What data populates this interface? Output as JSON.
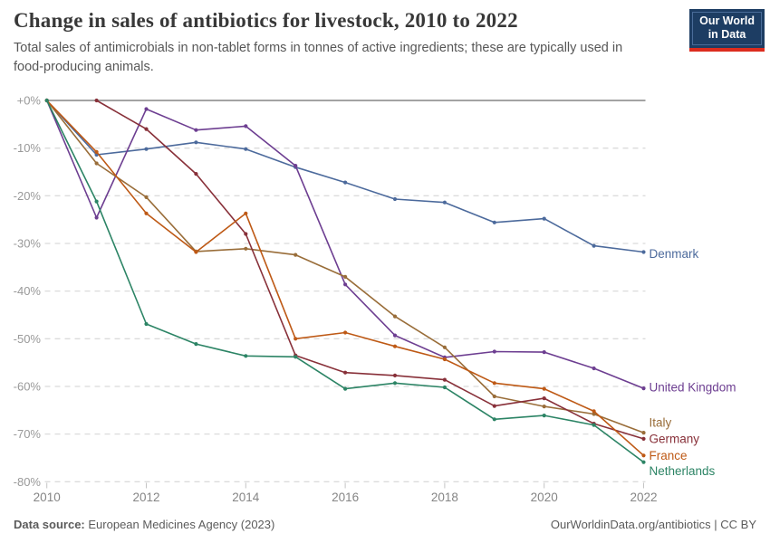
{
  "header": {
    "title": "Change in sales of antibiotics for livestock, 2010 to 2022",
    "subtitle": "Total sales of antimicrobials in non-tablet forms in tonnes of active ingredients; these are typically used in food-producing animals."
  },
  "logo": {
    "line1": "Our World",
    "line2": "in Data",
    "bg_color": "#1d3d63",
    "bar_color": "#dc2c1e"
  },
  "footer": {
    "source_label": "Data source:",
    "source_value": "European Medicines Agency (2023)",
    "right_text": "OurWorldinData.org/antibiotics | CC BY"
  },
  "chart_data": {
    "type": "line",
    "title": "Change in sales of antibiotics for livestock, 2010 to 2022",
    "xlabel": "",
    "ylabel": "",
    "xlim": [
      2010,
      2022
    ],
    "ylim": [
      -80,
      0
    ],
    "grid": "horizontal-dashed",
    "legend_position": "right-end-labels",
    "x_ticks": [
      2010,
      2012,
      2014,
      2016,
      2018,
      2020,
      2022
    ],
    "y_tick_labels": [
      "+0%",
      "-10%",
      "-20%",
      "-30%",
      "-40%",
      "-50%",
      "-60%",
      "-70%",
      "-80%"
    ],
    "y_tick_values": [
      0,
      -10,
      -20,
      -30,
      -40,
      -50,
      -60,
      -70,
      -80
    ],
    "axis_colors": {
      "zero_line": "#a3a3a3",
      "gridline": "#dbdbdb",
      "tick": "#c4c4c4"
    },
    "series": [
      {
        "name": "Denmark",
        "color": "#4C6A9C",
        "label_dy": 2,
        "years": [
          2010,
          2011,
          2012,
          2013,
          2014,
          2015,
          2016,
          2017,
          2018,
          2019,
          2020,
          2021,
          2022
        ],
        "values": [
          0,
          -11.4,
          -10.2,
          -8.8,
          -10.2,
          -14,
          -17.2,
          -20.7,
          -21.4,
          -25.6,
          -24.8,
          -30.5,
          -31.8
        ]
      },
      {
        "name": "United Kingdom",
        "color": "#6D3E91",
        "label_dy": -1,
        "years": [
          2010,
          2011,
          2012,
          2013,
          2014,
          2015,
          2016,
          2017,
          2018,
          2019,
          2020,
          2021,
          2022
        ],
        "values": [
          0,
          -24.6,
          -1.8,
          -6.2,
          -5.4,
          -13.7,
          -38.6,
          -49.3,
          -53.9,
          -52.7,
          -52.8,
          -56.2,
          -60.4
        ]
      },
      {
        "name": "Italy",
        "color": "#996D39",
        "label_dy": -11,
        "years": [
          2010,
          2011,
          2012,
          2013,
          2014,
          2015,
          2016,
          2017,
          2018,
          2019,
          2020,
          2021,
          2022
        ],
        "values": [
          0,
          -13.2,
          -20.3,
          -31.7,
          -31.1,
          -32.4,
          -37,
          -45.3,
          -51.8,
          -62.1,
          -64.2,
          -65.8,
          -69.7
        ]
      },
      {
        "name": "Germany",
        "color": "#883039",
        "label_dy": 0,
        "years": [
          2011,
          2012,
          2013,
          2014,
          2015,
          2016,
          2017,
          2018,
          2019,
          2020,
          2021,
          2022
        ],
        "values": [
          0,
          -6,
          -15.4,
          -28,
          -53.5,
          -57.1,
          -57.7,
          -58.6,
          -64.1,
          -62.5,
          -67.8,
          -71
        ]
      },
      {
        "name": "France",
        "color": "#BE5915",
        "label_dy": 0,
        "years": [
          2010,
          2011,
          2012,
          2013,
          2014,
          2015,
          2016,
          2017,
          2018,
          2019,
          2020,
          2021,
          2022
        ],
        "values": [
          0,
          -10.8,
          -23.7,
          -31.8,
          -23.7,
          -50,
          -48.7,
          -51.6,
          -54.3,
          -59.3,
          -60.5,
          -65.2,
          -74.5
        ]
      },
      {
        "name": "Netherlands",
        "color": "#2C8465",
        "label_dy": 10,
        "years": [
          2010,
          2011,
          2012,
          2013,
          2014,
          2015,
          2016,
          2017,
          2018,
          2019,
          2020,
          2021,
          2022
        ],
        "values": [
          0,
          -21.2,
          -46.9,
          -51.1,
          -53.6,
          -53.8,
          -60.5,
          -59.3,
          -60.2,
          -66.9,
          -66.1,
          -68.1,
          -75.9
        ]
      }
    ]
  }
}
